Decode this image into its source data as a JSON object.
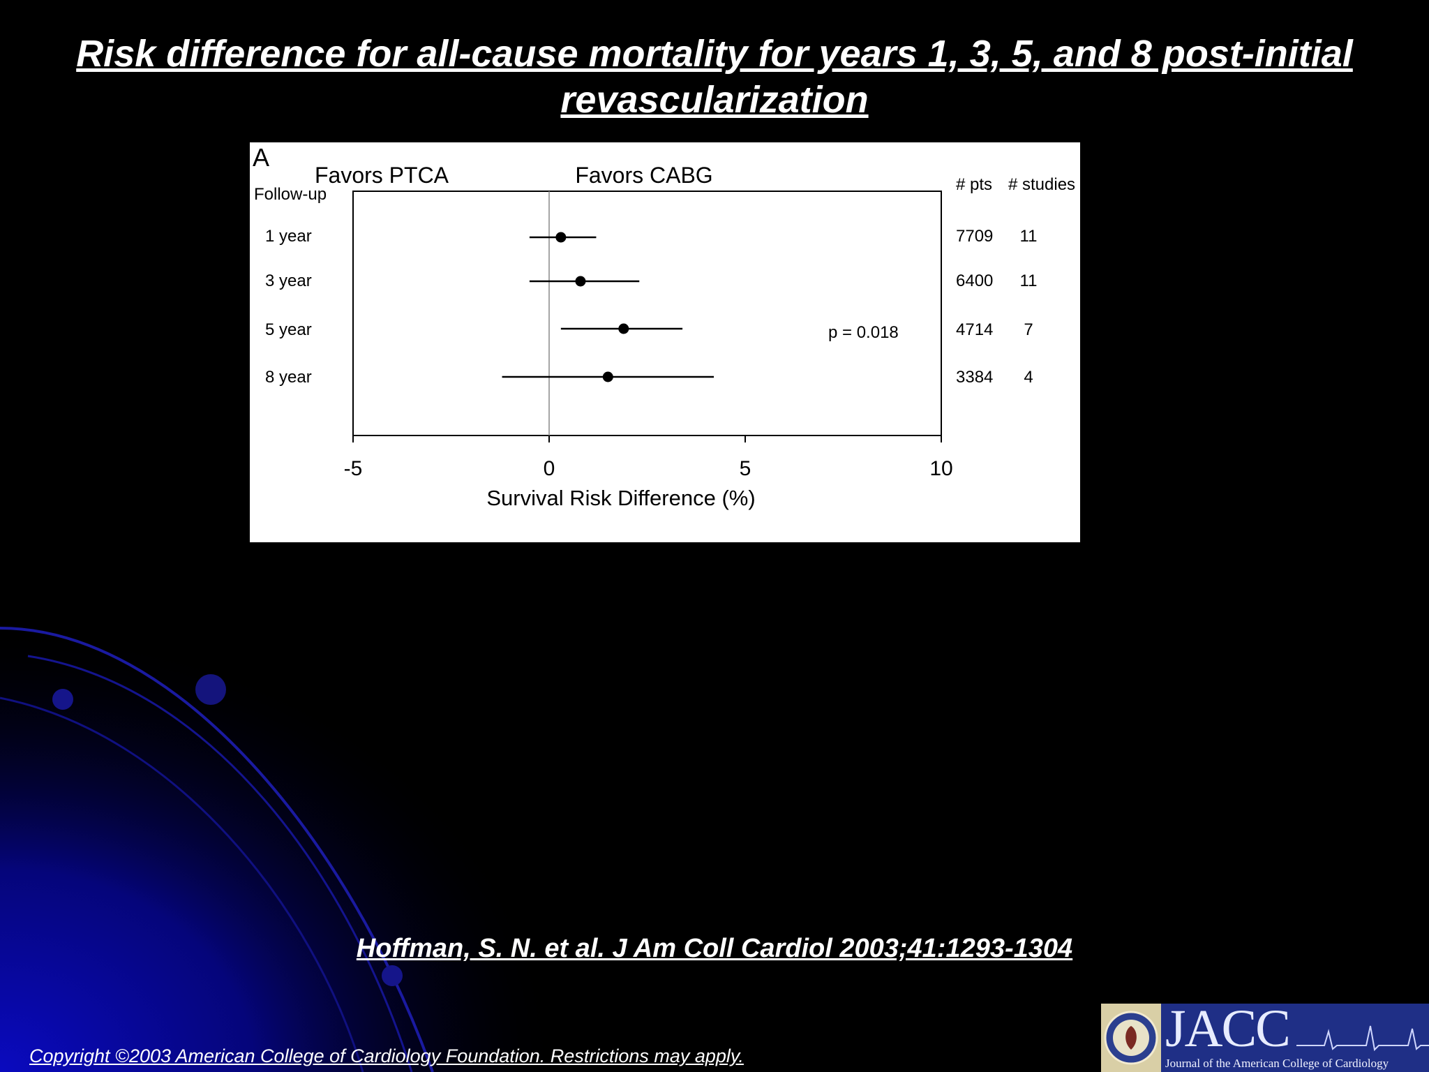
{
  "slide": {
    "title": "Risk difference for all-cause mortality for years 1, 3, 5, and 8 post-initial revascularization",
    "citation": "Hoffman, S. N. et al. J Am Coll Cardiol 2003;41:1293-1304",
    "copyright": "Copyright ©2003 American College of Cardiology Foundation. Restrictions may apply."
  },
  "logo": {
    "main": "JACC",
    "subtitle": "Journal of the American College of Cardiology"
  },
  "chart_data": {
    "type": "forest",
    "panel_label": "A",
    "row_header": "Follow-up",
    "left_header": "Favors PTCA",
    "right_header": "Favors CABG",
    "count_headers": [
      "# pts",
      "# studies"
    ],
    "xlabel": "Survival Risk Difference (%)",
    "xlim": [
      -5,
      10
    ],
    "xticks": [
      "-5",
      "0",
      "5",
      "10"
    ],
    "reference_line": 0,
    "annotation": "p = 0.018",
    "annotation_row": 2,
    "rows": [
      {
        "label": "1 year",
        "estimate": 0.3,
        "ci": [
          -0.5,
          1.2
        ],
        "pts": "7709",
        "studies": "11"
      },
      {
        "label": "3 year",
        "estimate": 0.8,
        "ci": [
          -0.5,
          2.3
        ],
        "pts": "6400",
        "studies": "11"
      },
      {
        "label": "5 year",
        "estimate": 1.9,
        "ci": [
          0.3,
          3.4
        ],
        "pts": "4714",
        "studies": "7"
      },
      {
        "label": "8 year",
        "estimate": 1.5,
        "ci": [
          -1.2,
          4.2
        ],
        "pts": "3384",
        "studies": "4"
      }
    ]
  },
  "colors": {
    "background": "#000000",
    "text": "#ffffff",
    "accent_blue": "#1a1aa8"
  }
}
